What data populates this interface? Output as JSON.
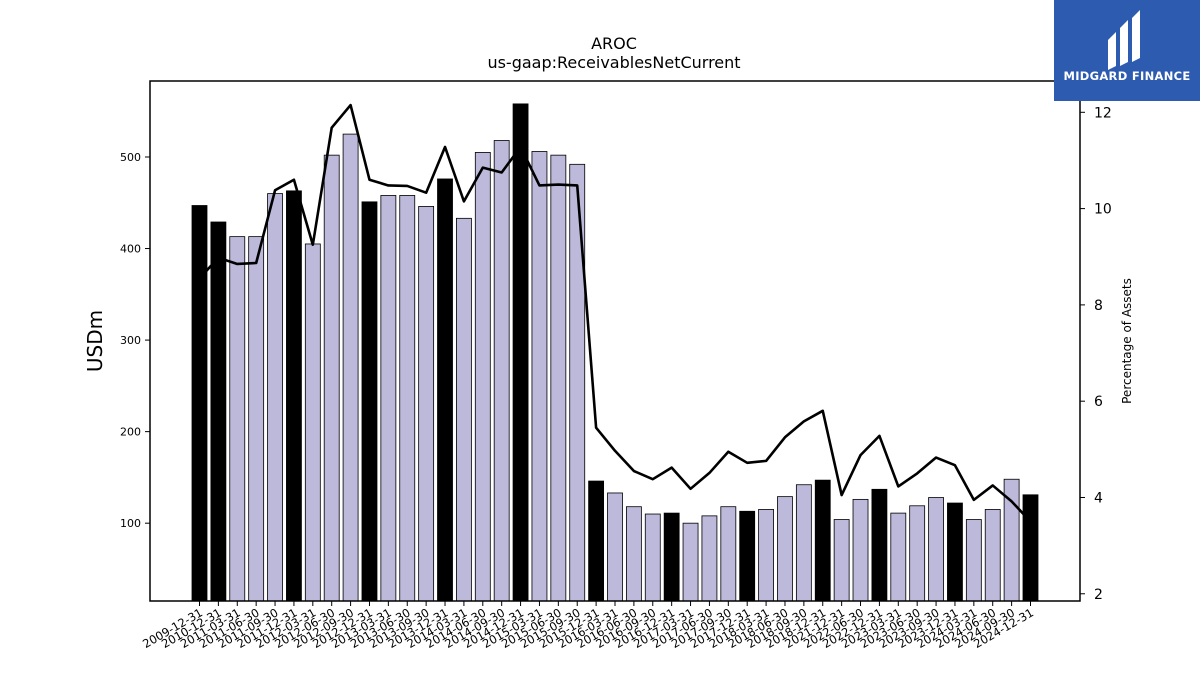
{
  "brand": {
    "name": "MIDGARD FINANCE"
  },
  "colors": {
    "annual_bar": "#000000",
    "quarter_bar": "#bcb9da",
    "line": "#000000",
    "brand": "#2d5bb0"
  },
  "chart_data": {
    "type": "bar",
    "title": "AROC",
    "subtitle": "us-gaap:ReceivablesNetCurrent",
    "ylabel": "USDm",
    "y2label": "Percentage of Assets",
    "ylim": [
      15,
      583
    ],
    "y2lim": [
      1.85,
      12.65
    ],
    "yticks": [
      100,
      200,
      300,
      400,
      500
    ],
    "y2ticks": [
      2,
      4,
      6,
      8,
      10,
      12
    ],
    "categories": [
      "2009-12-31",
      "2010-12-31",
      "2011-03-31",
      "2011-06-30",
      "2011-09-30",
      "2011-12-31",
      "2012-03-31",
      "2012-06-30",
      "2012-09-30",
      "2012-12-31",
      "2013-03-31",
      "2013-06-30",
      "2013-09-30",
      "2013-12-31",
      "2014-03-31",
      "2014-06-30",
      "2014-09-30",
      "2014-12-31",
      "2015-03-31",
      "2015-06-30",
      "2015-09-30",
      "2015-12-31",
      "2016-03-31",
      "2016-06-30",
      "2016-09-30",
      "2016-12-31",
      "2017-03-31",
      "2017-06-30",
      "2017-09-30",
      "2017-12-31",
      "2018-03-31",
      "2018-06-30",
      "2018-09-30",
      "2018-12-31",
      "2021-12-31",
      "2022-06-30",
      "2022-12-31",
      "2023-03-31",
      "2023-06-30",
      "2023-09-30",
      "2023-12-31",
      "2024-03-31",
      "2024-06-30",
      "2024-09-30",
      "2024-12-31"
    ],
    "series": [
      {
        "kind": "bar",
        "values": [
          447,
          429,
          413,
          413,
          460,
          463,
          405,
          502,
          525,
          451,
          458,
          458,
          446,
          476,
          433,
          505,
          518,
          558,
          506,
          502,
          492,
          146,
          133,
          118,
          110,
          111,
          100,
          108,
          118,
          113,
          115,
          129,
          142,
          147,
          104,
          126,
          137,
          111,
          119,
          128,
          122,
          104,
          115,
          148,
          131
        ],
        "annual": [
          true,
          true,
          false,
          false,
          false,
          true,
          false,
          false,
          false,
          true,
          false,
          false,
          false,
          true,
          false,
          false,
          false,
          true,
          false,
          false,
          false,
          true,
          false,
          false,
          false,
          true,
          false,
          false,
          false,
          true,
          false,
          false,
          false,
          true,
          false,
          false,
          true,
          false,
          false,
          false,
          true,
          false,
          false,
          false,
          true
        ]
      },
      {
        "kind": "line",
        "axis": "right",
        "values": [
          8.55,
          8.98,
          8.85,
          8.87,
          10.38,
          10.6,
          9.25,
          11.68,
          12.15,
          10.6,
          10.48,
          10.47,
          10.33,
          11.28,
          10.15,
          10.85,
          10.75,
          11.28,
          10.48,
          10.5,
          10.48,
          5.45,
          4.97,
          4.55,
          4.38,
          4.62,
          4.18,
          4.51,
          4.95,
          4.72,
          4.76,
          5.25,
          5.58,
          5.8,
          4.05,
          4.88,
          5.28,
          4.23,
          4.5,
          4.83,
          4.67,
          3.95,
          4.25,
          3.92,
          3.5
        ]
      }
    ]
  }
}
